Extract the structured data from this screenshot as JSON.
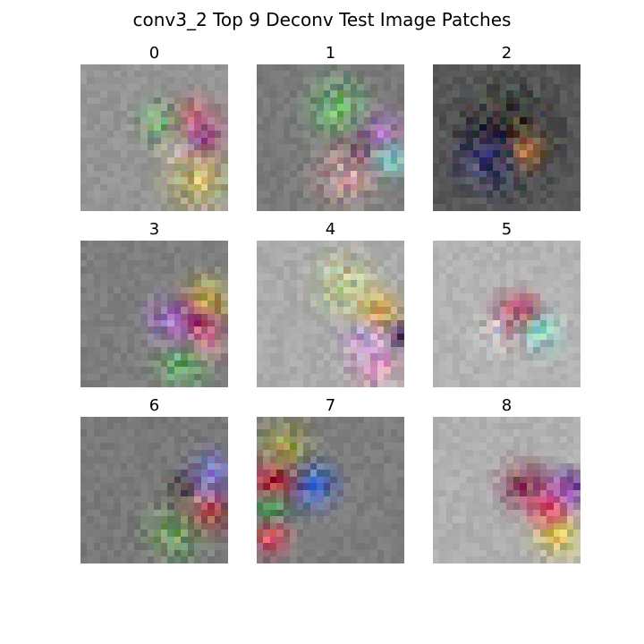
{
  "figure": {
    "title": "conv3_2 Top 9 Deconv Test Image Patches"
  },
  "panels": [
    {
      "label": "0",
      "background": "#959595",
      "blobs": [
        [
          "#e04a5a",
          0.75,
          0.45,
          0.18
        ],
        [
          "#f0f0f0",
          0.68,
          0.55,
          0.12
        ],
        [
          "#8a3aa0",
          0.82,
          0.52,
          0.12
        ],
        [
          "#c9c06a",
          0.8,
          0.78,
          0.2
        ],
        [
          "#6aa06a",
          0.55,
          0.4,
          0.15
        ]
      ]
    },
    {
      "label": "1",
      "background": "#7a7a7a",
      "blobs": [
        [
          "#2a1a2a",
          0.72,
          0.55,
          0.15
        ],
        [
          "#b070c0",
          0.85,
          0.48,
          0.15
        ],
        [
          "#80e0d0",
          0.9,
          0.66,
          0.12
        ],
        [
          "#70c070",
          0.55,
          0.3,
          0.18
        ],
        [
          "#d0a0a0",
          0.62,
          0.75,
          0.2
        ]
      ]
    },
    {
      "label": "2",
      "background": "#575757",
      "blobs": [
        [
          "#f0d040",
          0.55,
          0.55,
          0.15
        ],
        [
          "#151515",
          0.5,
          0.5,
          0.28
        ],
        [
          "#e08030",
          0.62,
          0.6,
          0.1
        ],
        [
          "#404080",
          0.4,
          0.65,
          0.2
        ]
      ]
    },
    {
      "label": "3",
      "background": "#7e7e7e",
      "blobs": [
        [
          "#d0c040",
          0.85,
          0.42,
          0.15
        ],
        [
          "#a01050",
          0.78,
          0.58,
          0.15
        ],
        [
          "#f090b0",
          0.85,
          0.7,
          0.12
        ],
        [
          "#60b060",
          0.7,
          0.85,
          0.15
        ],
        [
          "#a070d0",
          0.62,
          0.55,
          0.15
        ]
      ]
    },
    {
      "label": "4",
      "background": "#ababab",
      "blobs": [
        [
          "#e0b030",
          0.82,
          0.5,
          0.15
        ],
        [
          "#2a1040",
          0.98,
          0.66,
          0.1
        ],
        [
          "#f0a0c0",
          0.82,
          0.85,
          0.15
        ],
        [
          "#c0a0e0",
          0.75,
          0.68,
          0.15
        ],
        [
          "#c0d090",
          0.6,
          0.3,
          0.18
        ]
      ]
    },
    {
      "label": "5",
      "background": "#b3b3b3",
      "blobs": [
        [
          "#801030",
          0.55,
          0.55,
          0.15
        ],
        [
          "#c03050",
          0.62,
          0.5,
          0.12
        ],
        [
          "#90e0d0",
          0.72,
          0.62,
          0.14
        ],
        [
          "#e0e0e0",
          0.45,
          0.62,
          0.12
        ]
      ]
    },
    {
      "label": "6",
      "background": "#797979",
      "blobs": [
        [
          "#c01020",
          0.85,
          0.62,
          0.15
        ],
        [
          "#f0a0b0",
          0.78,
          0.55,
          0.12
        ],
        [
          "#303030",
          0.7,
          0.5,
          0.12
        ],
        [
          "#7070d0",
          0.9,
          0.4,
          0.15
        ],
        [
          "#70a060",
          0.65,
          0.8,
          0.18
        ]
      ]
    },
    {
      "label": "7",
      "background": "#7d7d7d",
      "blobs": [
        [
          "#3060d0",
          0.38,
          0.47,
          0.15
        ],
        [
          "#c01030",
          0.12,
          0.45,
          0.15
        ],
        [
          "#30a060",
          0.1,
          0.65,
          0.12
        ],
        [
          "#e04060",
          0.1,
          0.82,
          0.12
        ],
        [
          "#a0a040",
          0.2,
          0.2,
          0.15
        ]
      ]
    },
    {
      "label": "8",
      "background": "#b0b0b0",
      "blobs": [
        [
          "#3a1060",
          0.95,
          0.48,
          0.1
        ],
        [
          "#b060e0",
          0.85,
          0.55,
          0.15
        ],
        [
          "#e0c040",
          0.85,
          0.8,
          0.15
        ],
        [
          "#802040",
          0.62,
          0.48,
          0.15
        ],
        [
          "#e04060",
          0.78,
          0.62,
          0.12
        ]
      ]
    }
  ]
}
